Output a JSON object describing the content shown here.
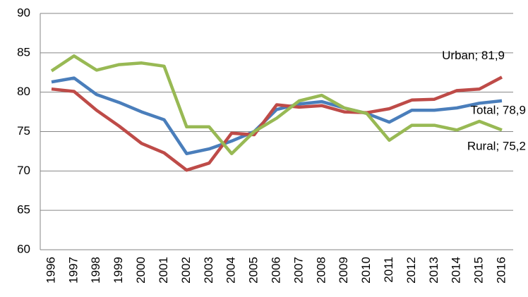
{
  "chart_data": {
    "type": "line",
    "categories": [
      "1996",
      "1997",
      "1998",
      "1999",
      "2000",
      "2001",
      "2002",
      "2003",
      "2004",
      "2005",
      "2006",
      "2007",
      "2008",
      "2009",
      "2010",
      "2011",
      "2012",
      "2013",
      "2014",
      "2015",
      "2016"
    ],
    "series": [
      {
        "name": "Total",
        "color": "#4a7ebb",
        "values": [
          81.3,
          81.8,
          79.7,
          78.7,
          77.5,
          76.5,
          72.2,
          72.8,
          73.8,
          75.0,
          77.8,
          78.5,
          78.8,
          78.0,
          77.3,
          76.2,
          77.7,
          77.7,
          78.0,
          78.6,
          78.9
        ],
        "value_labels": [
          null,
          null,
          null,
          null,
          null,
          null,
          null,
          null,
          null,
          null,
          null,
          null,
          null,
          null,
          null,
          null,
          null,
          null,
          null,
          null,
          "Total; 78,9"
        ]
      },
      {
        "name": "Urban",
        "color": "#be4b48",
        "values": [
          80.4,
          80.1,
          77.7,
          75.7,
          73.5,
          72.3,
          70.1,
          71.0,
          74.8,
          74.6,
          78.4,
          78.1,
          78.3,
          77.5,
          77.4,
          77.9,
          79.0,
          79.1,
          80.2,
          80.4,
          81.9
        ],
        "value_labels": [
          null,
          null,
          null,
          null,
          null,
          null,
          null,
          null,
          null,
          null,
          null,
          null,
          null,
          null,
          null,
          null,
          null,
          null,
          null,
          null,
          "Urban; 81,9"
        ]
      },
      {
        "name": "Rural",
        "color": "#98b954",
        "values": [
          82.7,
          84.6,
          82.8,
          83.5,
          83.7,
          83.3,
          75.6,
          75.6,
          72.2,
          75.0,
          76.7,
          78.9,
          79.6,
          78.0,
          77.3,
          73.9,
          75.8,
          75.8,
          75.2,
          76.3,
          75.2
        ],
        "value_labels": [
          null,
          null,
          null,
          null,
          null,
          null,
          null,
          null,
          null,
          null,
          null,
          null,
          null,
          null,
          null,
          null,
          null,
          null,
          null,
          null,
          "Rural; 75,2"
        ]
      }
    ],
    "ylim": [
      60,
      90
    ],
    "yticks": [
      60,
      65,
      70,
      75,
      80,
      85,
      90
    ],
    "grid": true
  }
}
